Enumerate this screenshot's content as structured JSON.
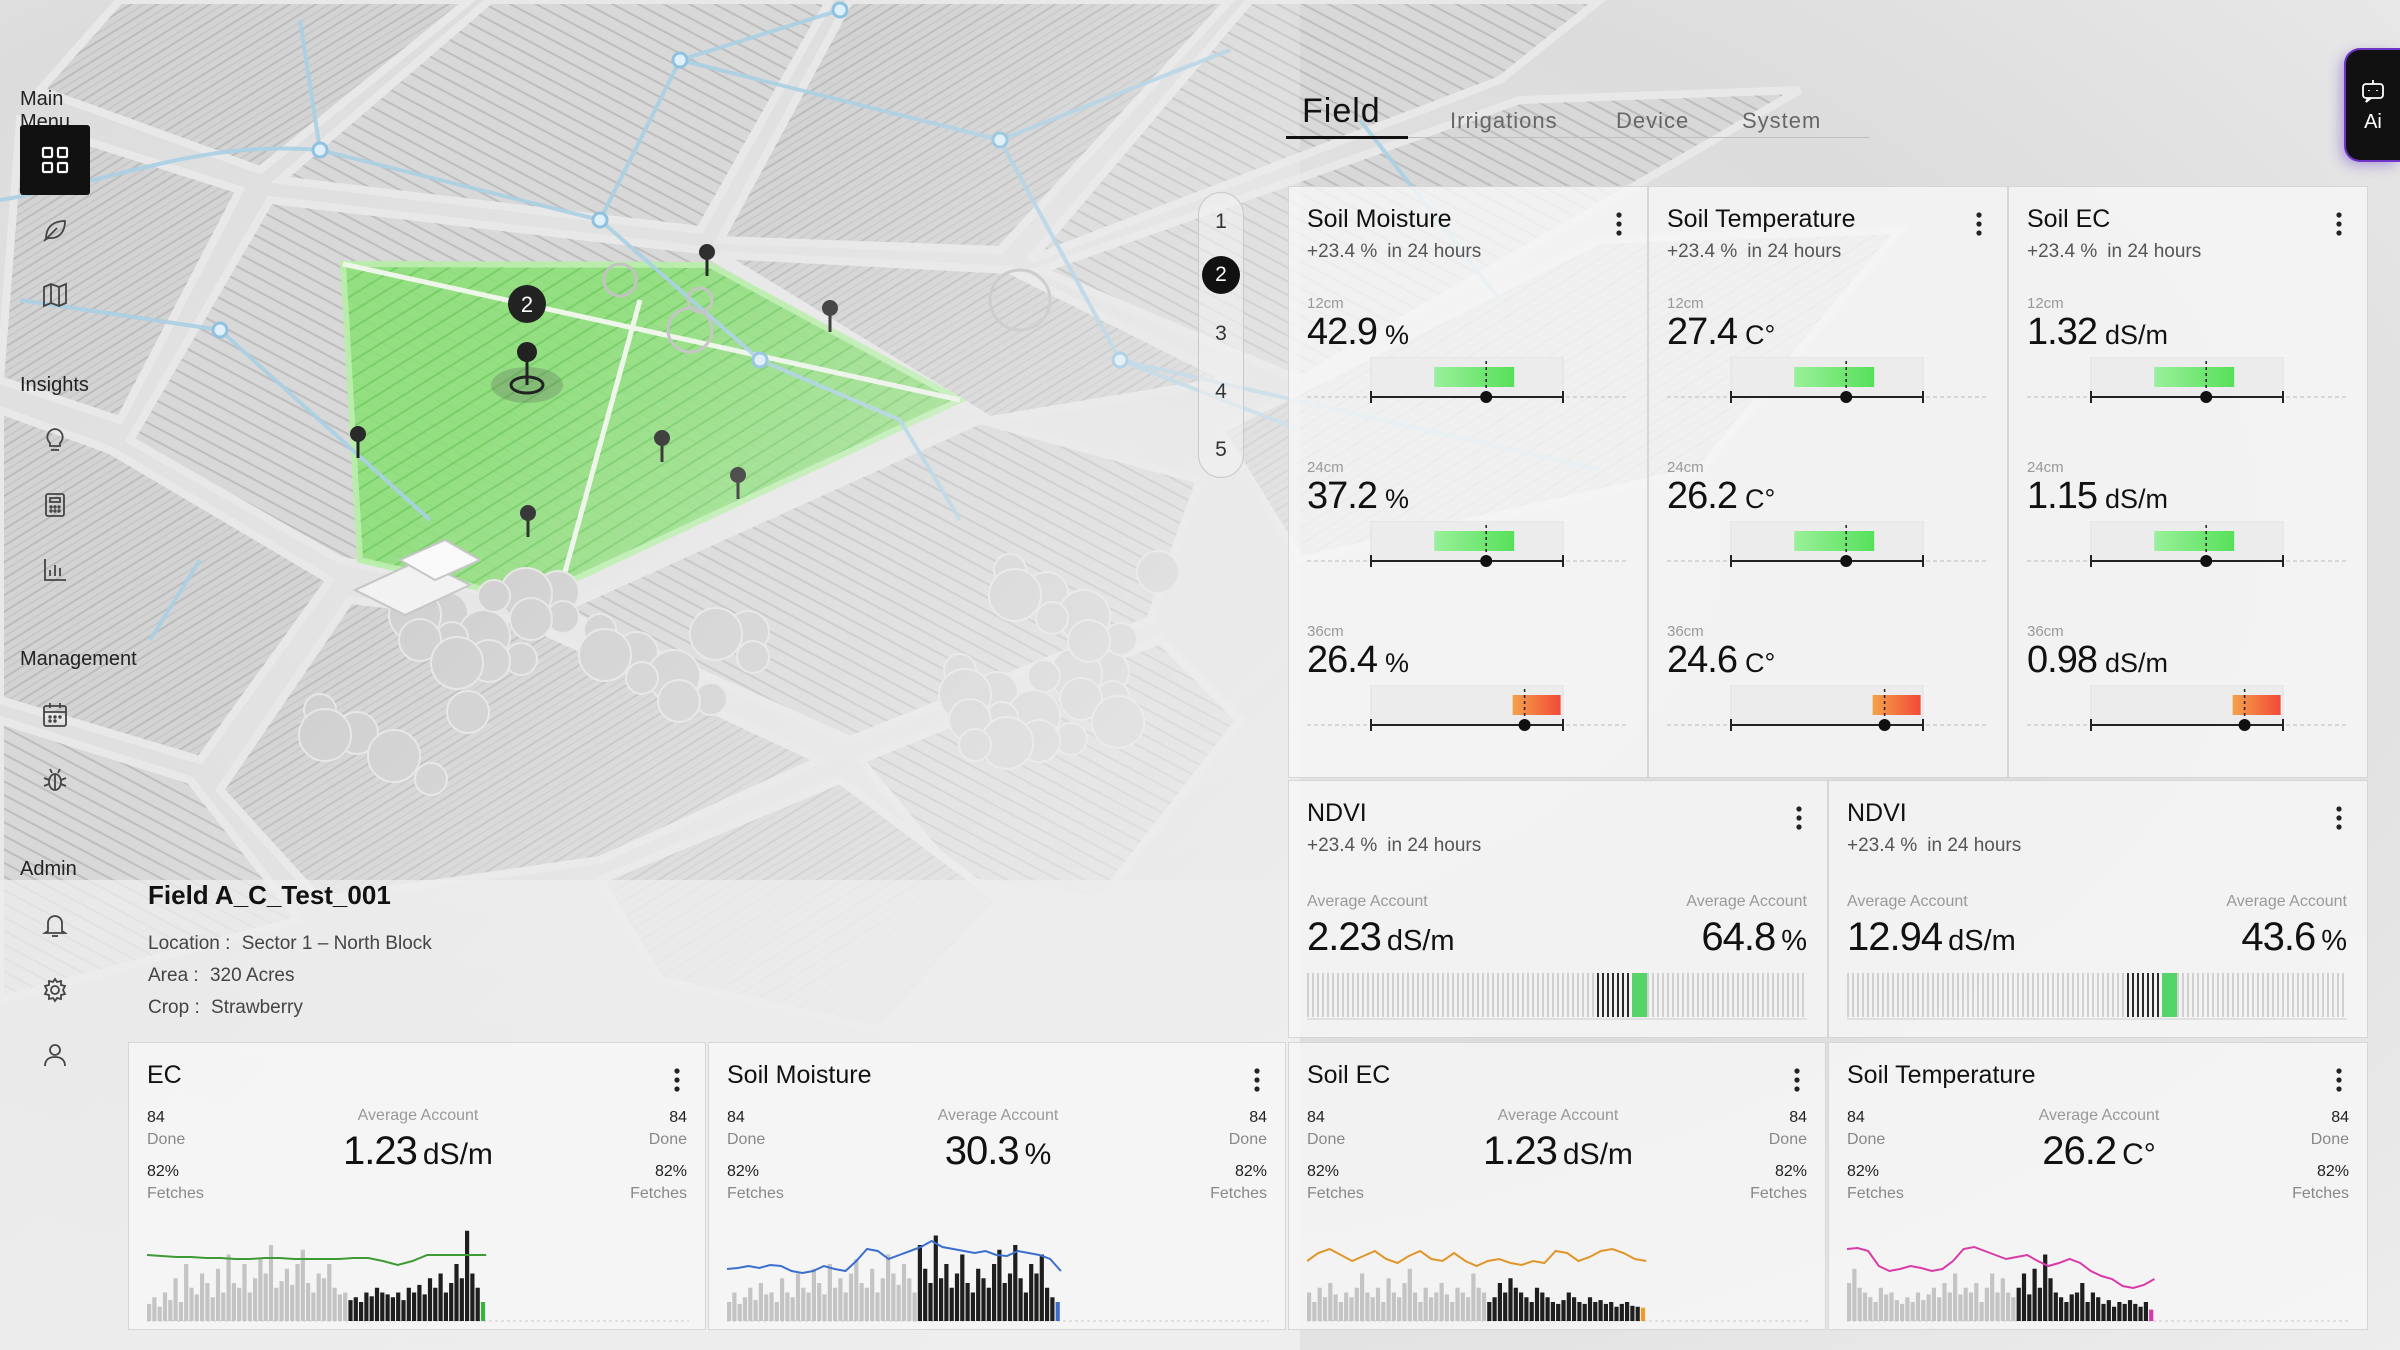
{
  "sidebar": {
    "sections": [
      {
        "label": "Main Menu",
        "icons": [
          "dashboard-grid-icon",
          "leaf-icon",
          "map-icon"
        ]
      },
      {
        "label": "Insights",
        "icons": [
          "lightbulb-icon",
          "calculator-icon",
          "bar-chart-icon"
        ]
      },
      {
        "label": "Management",
        "icons": [
          "calendar-icon",
          "bug-icon"
        ]
      },
      {
        "label": "Admin",
        "icons": [
          "bell-icon",
          "gear-icon",
          "user-icon"
        ]
      }
    ]
  },
  "map": {
    "selected_marker": "2",
    "selected_fill_color": "#8ee07a"
  },
  "field": {
    "title": "Field A_C_Test_001",
    "location_label": "Location :",
    "location_value": "Sector 1 – North Block",
    "area_label": "Area :",
    "area_value": "320 Acres",
    "crop_label": "Crop :",
    "crop_value": "Strawberry"
  },
  "pager": {
    "items": [
      "1",
      "2",
      "3",
      "4",
      "5"
    ],
    "active_index": 1
  },
  "tabs": {
    "items": [
      "Field",
      "Irrigations",
      "Device",
      "System"
    ],
    "active_index": 0
  },
  "ai_button": {
    "label": "Ai",
    "icon": "chat-bot-icon"
  },
  "sensor_cards": [
    {
      "title": "Soil Moisture",
      "change": "+23.4 %",
      "change_suffix": "in 24 hours",
      "rows": [
        {
          "depth": "12cm",
          "value": "42.9",
          "unit": "%",
          "status": "green",
          "marker_level": 0.6
        },
        {
          "depth": "24cm",
          "value": "37.2",
          "unit": "%",
          "status": "green",
          "marker_level": 0.6
        },
        {
          "depth": "36cm",
          "value": "26.4",
          "unit": "%",
          "status": "red",
          "marker_level": 0.8
        }
      ]
    },
    {
      "title": "Soil Temperature",
      "change": "+23.4 %",
      "change_suffix": "in 24 hours",
      "rows": [
        {
          "depth": "12cm",
          "value": "27.4",
          "unit": "C°",
          "status": "green",
          "marker_level": 0.6
        },
        {
          "depth": "24cm",
          "value": "26.2",
          "unit": "C°",
          "status": "green",
          "marker_level": 0.6
        },
        {
          "depth": "36cm",
          "value": "24.6",
          "unit": "C°",
          "status": "red",
          "marker_level": 0.8
        }
      ]
    },
    {
      "title": "Soil EC",
      "change": "+23.4 %",
      "change_suffix": "in 24 hours",
      "rows": [
        {
          "depth": "12cm",
          "value": "1.32",
          "unit": "dS/m",
          "status": "green",
          "marker_level": 0.6
        },
        {
          "depth": "24cm",
          "value": "1.15",
          "unit": "dS/m",
          "status": "green",
          "marker_level": 0.6
        },
        {
          "depth": "36cm",
          "value": "0.98",
          "unit": "dS/m",
          "status": "red",
          "marker_level": 0.8
        }
      ]
    }
  ],
  "ndvi_cards": [
    {
      "title": "NDVI",
      "change": "+23.4 %",
      "change_suffix": "in 24 hours",
      "left_label": "Average Account",
      "left_value": "2.23",
      "left_unit": "dS/m",
      "right_label": "Average Account",
      "right_value": "64.8",
      "right_unit": "%",
      "fill_level": 0.68
    },
    {
      "title": "NDVI",
      "change": "+23.4 %",
      "change_suffix": "in 24 hours",
      "left_label": "Average Account",
      "left_value": "12.94",
      "left_unit": "dS/m",
      "right_label": "Average Account",
      "right_value": "43.6",
      "right_unit": "%",
      "fill_level": 0.66
    }
  ],
  "bottom_cards": [
    {
      "title": "EC",
      "done_count": "84",
      "done_label": "Done",
      "fetch_pct": "82%",
      "fetch_label": "Fetches",
      "avg_label": "Average Account",
      "avg_value": "1.23",
      "avg_unit": "dS/m",
      "line_color": "#3e9a35",
      "accent_color": "#3cb43c",
      "line": [
        0.66,
        0.65,
        0.64,
        0.64,
        0.63,
        0.63,
        0.62,
        0.62,
        0.63,
        0.63,
        0.62,
        0.62,
        0.62,
        0.62,
        0.63,
        0.63,
        0.6,
        0.56,
        0.6,
        0.66,
        0.66,
        0.66,
        0.66,
        0.66
      ],
      "bars": [
        0.18,
        0.25,
        0.15,
        0.3,
        0.22,
        0.45,
        0.2,
        0.6,
        0.35,
        0.28,
        0.5,
        0.4,
        0.25,
        0.55,
        0.3,
        0.7,
        0.4,
        0.35,
        0.6,
        0.3,
        0.45,
        0.65,
        0.5,
        0.8,
        0.35,
        0.42,
        0.55,
        0.38,
        0.6,
        0.75,
        0.4,
        0.3,
        0.5,
        0.45,
        0.6,
        0.35,
        0.28,
        0.3,
        0.22,
        0.25,
        0.2,
        0.3,
        0.26,
        0.35,
        0.3,
        0.28,
        0.25,
        0.3,
        0.22,
        0.35,
        0.3,
        0.38,
        0.28,
        0.45,
        0.35,
        0.5,
        0.3,
        0.4,
        0.6,
        0.45,
        0.95,
        0.5,
        0.35,
        0.2
      ],
      "dark_from": 38
    },
    {
      "title": "Soil Moisture",
      "done_count": "84",
      "done_label": "Done",
      "fetch_pct": "82%",
      "fetch_label": "Fetches",
      "avg_label": "Average Account",
      "avg_value": "30.3",
      "avg_unit": "%",
      "line_color": "#3b6fce",
      "accent_color": "#3b6fce",
      "line": [
        0.52,
        0.53,
        0.55,
        0.53,
        0.56,
        0.55,
        0.5,
        0.48,
        0.5,
        0.55,
        0.52,
        0.5,
        0.6,
        0.72,
        0.7,
        0.62,
        0.66,
        0.7,
        0.74,
        0.8,
        0.74,
        0.72,
        0.7,
        0.68,
        0.7,
        0.66,
        0.65,
        0.7,
        0.68,
        0.66,
        0.62,
        0.5
      ],
      "bars": [
        0.2,
        0.3,
        0.18,
        0.25,
        0.35,
        0.22,
        0.4,
        0.28,
        0.3,
        0.2,
        0.45,
        0.3,
        0.25,
        0.5,
        0.35,
        0.3,
        0.55,
        0.4,
        0.28,
        0.6,
        0.35,
        0.45,
        0.3,
        0.5,
        0.65,
        0.4,
        0.35,
        0.55,
        0.3,
        0.45,
        0.7,
        0.5,
        0.38,
        0.6,
        0.45,
        0.3,
        0.8,
        0.55,
        0.4,
        0.9,
        0.45,
        0.6,
        0.35,
        0.5,
        0.7,
        0.4,
        0.3,
        0.55,
        0.45,
        0.35,
        0.6,
        0.75,
        0.4,
        0.5,
        0.8,
        0.45,
        0.3,
        0.6,
        0.5,
        0.7,
        0.35,
        0.25,
        0.2
      ],
      "dark_from": 36
    },
    {
      "title": "Soil EC",
      "done_count": "84",
      "done_label": "Done",
      "fetch_pct": "82%",
      "fetch_label": "Fetches",
      "avg_label": "Average Account",
      "avg_value": "1.23",
      "avg_unit": "dS/m",
      "line_color": "#e0962a",
      "accent_color": "#f09a2a",
      "line": [
        0.6,
        0.68,
        0.72,
        0.66,
        0.6,
        0.65,
        0.7,
        0.62,
        0.58,
        0.65,
        0.7,
        0.62,
        0.6,
        0.68,
        0.6,
        0.55,
        0.6,
        0.62,
        0.58,
        0.56,
        0.6,
        0.58,
        0.7,
        0.68,
        0.6,
        0.64,
        0.7,
        0.72,
        0.68,
        0.62,
        0.6
      ],
      "bars": [
        0.3,
        0.2,
        0.35,
        0.25,
        0.4,
        0.28,
        0.2,
        0.3,
        0.25,
        0.35,
        0.5,
        0.3,
        0.25,
        0.35,
        0.2,
        0.45,
        0.3,
        0.25,
        0.4,
        0.55,
        0.3,
        0.2,
        0.35,
        0.25,
        0.3,
        0.4,
        0.28,
        0.2,
        0.35,
        0.3,
        0.25,
        0.5,
        0.35,
        0.3,
        0.2,
        0.25,
        0.4,
        0.3,
        0.45,
        0.35,
        0.3,
        0.25,
        0.2,
        0.35,
        0.3,
        0.25,
        0.2,
        0.18,
        0.22,
        0.3,
        0.25,
        0.2,
        0.18,
        0.25,
        0.2,
        0.22,
        0.18,
        0.2,
        0.15,
        0.18,
        0.2,
        0.16,
        0.15,
        0.14
      ],
      "dark_from": 34
    },
    {
      "title": "Soil Temperature",
      "done_count": "84",
      "done_label": "Done",
      "fetch_pct": "82%",
      "fetch_label": "Fetches",
      "avg_label": "Average Account",
      "avg_value": "26.2",
      "avg_unit": "C°",
      "line_color": "#d83aa8",
      "accent_color": "#d83aa8",
      "line": [
        0.72,
        0.73,
        0.7,
        0.55,
        0.5,
        0.52,
        0.55,
        0.53,
        0.5,
        0.52,
        0.6,
        0.72,
        0.74,
        0.7,
        0.66,
        0.62,
        0.64,
        0.66,
        0.6,
        0.55,
        0.58,
        0.62,
        0.58,
        0.5,
        0.45,
        0.42,
        0.35,
        0.33,
        0.36,
        0.42
      ],
      "bars": [
        0.4,
        0.55,
        0.35,
        0.3,
        0.25,
        0.2,
        0.35,
        0.28,
        0.3,
        0.22,
        0.18,
        0.25,
        0.2,
        0.3,
        0.22,
        0.28,
        0.35,
        0.25,
        0.4,
        0.3,
        0.5,
        0.28,
        0.35,
        0.3,
        0.4,
        0.2,
        0.35,
        0.5,
        0.3,
        0.45,
        0.3,
        0.25,
        0.35,
        0.5,
        0.28,
        0.55,
        0.35,
        0.7,
        0.45,
        0.3,
        0.25,
        0.2,
        0.28,
        0.3,
        0.4,
        0.2,
        0.3,
        0.25,
        0.18,
        0.22,
        0.15,
        0.2,
        0.18,
        0.22,
        0.18,
        0.15,
        0.2,
        0.12
      ],
      "dark_from": 32
    }
  ]
}
